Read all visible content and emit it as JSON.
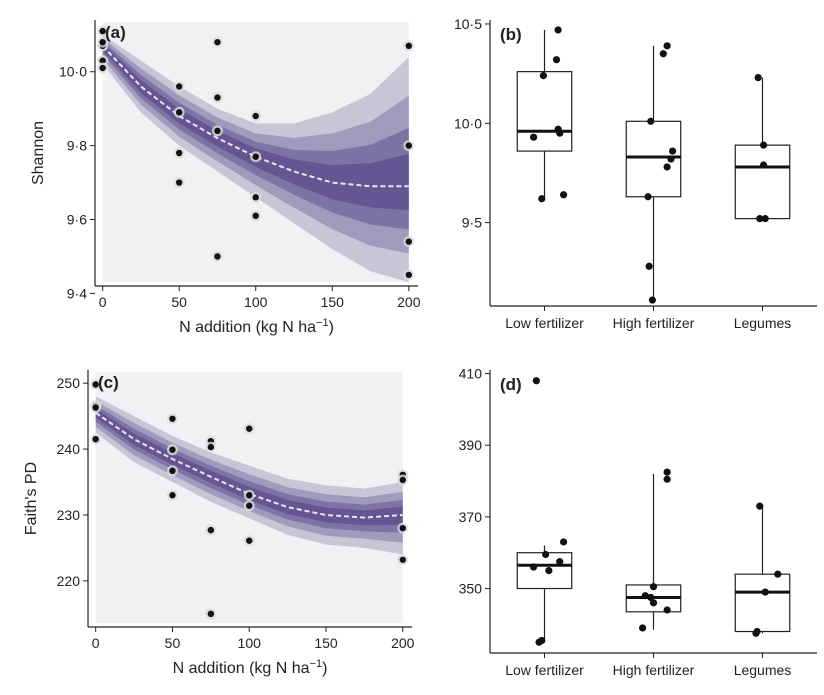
{
  "chart_data": [
    {
      "id": "a",
      "type": "scatter",
      "panel_label": "(a)",
      "ylabel": "Shannon",
      "xlabel": "N addition (kg N ha",
      "xlabel_sup": "−1",
      "xlabel_close": ")",
      "xlim": [
        -5,
        206
      ],
      "ylim": [
        9.42,
        10.14
      ],
      "x_ticks": [
        0,
        50,
        100,
        150,
        200
      ],
      "y_ticks": [
        9.4,
        9.6,
        9.8,
        10.0
      ],
      "y_tick_labels": [
        "9·4",
        "9·6",
        "9·8",
        "10·0"
      ],
      "grid": false,
      "band_color": "#3b2a78",
      "fit_line_color": "#ffffff",
      "fit_line": {
        "x": [
          0,
          25,
          50,
          75,
          100,
          125,
          150,
          175,
          200
        ],
        "y": [
          10.07,
          9.96,
          9.88,
          9.82,
          9.77,
          9.73,
          9.7,
          9.69,
          9.69
        ]
      },
      "band": {
        "upper": [
          10.1,
          10.03,
          9.96,
          9.9,
          9.86,
          9.86,
          9.89,
          9.94,
          10.04
        ],
        "lower": [
          10.02,
          9.89,
          9.8,
          9.73,
          9.66,
          9.59,
          9.52,
          9.46,
          9.43
        ]
      },
      "points": {
        "x": [
          0,
          0,
          0,
          0,
          0,
          50,
          50,
          50,
          50,
          75,
          75,
          75,
          75,
          100,
          100,
          100,
          100,
          200,
          200,
          200,
          200
        ],
        "y": [
          10.11,
          10.07,
          10.03,
          10.01,
          10.08,
          9.96,
          9.89,
          9.78,
          9.7,
          10.08,
          9.93,
          9.84,
          9.5,
          9.88,
          9.77,
          9.66,
          9.61,
          10.07,
          9.8,
          9.54,
          9.45
        ]
      }
    },
    {
      "id": "b",
      "type": "box",
      "panel_label": "(b)",
      "ylabel": "",
      "ylim": [
        9.08,
        10.52
      ],
      "y_ticks": [
        9.5,
        10.0,
        10.5
      ],
      "y_tick_labels": [
        "9·5",
        "10·0",
        "10·5"
      ],
      "categories": [
        "Low fertilizer",
        "High fertilizer",
        "Legumes"
      ],
      "grid": false,
      "boxes": [
        {
          "q1": 9.86,
          "median": 9.96,
          "q3": 10.26,
          "whisker_low": 9.62,
          "whisker_high": 10.47
        },
        {
          "q1": 9.63,
          "median": 9.83,
          "q3": 10.01,
          "whisker_low": 9.11,
          "whisker_high": 10.39
        },
        {
          "q1": 9.52,
          "median": 9.78,
          "q3": 9.89,
          "whisker_low": 9.51,
          "whisker_high": 10.23
        }
      ],
      "points": [
        {
          "cat": 0,
          "jitter": 0.25,
          "y": 10.47
        },
        {
          "cat": 0,
          "jitter": 0.22,
          "y": 10.32
        },
        {
          "cat": 0,
          "jitter": -0.02,
          "y": 10.24
        },
        {
          "cat": 0,
          "jitter": 0.25,
          "y": 9.97
        },
        {
          "cat": 0,
          "jitter": 0.28,
          "y": 9.95
        },
        {
          "cat": 0,
          "jitter": -0.2,
          "y": 9.93
        },
        {
          "cat": 0,
          "jitter": 0.35,
          "y": 9.64
        },
        {
          "cat": 0,
          "jitter": -0.05,
          "y": 9.62
        },
        {
          "cat": 1,
          "jitter": 0.25,
          "y": 10.39
        },
        {
          "cat": 1,
          "jitter": 0.18,
          "y": 10.35
        },
        {
          "cat": 1,
          "jitter": -0.05,
          "y": 10.01
        },
        {
          "cat": 1,
          "jitter": 0.35,
          "y": 9.86
        },
        {
          "cat": 1,
          "jitter": 0.32,
          "y": 9.82
        },
        {
          "cat": 1,
          "jitter": 0.25,
          "y": 9.78
        },
        {
          "cat": 1,
          "jitter": -0.1,
          "y": 9.63
        },
        {
          "cat": 1,
          "jitter": -0.08,
          "y": 9.28
        },
        {
          "cat": 1,
          "jitter": -0.02,
          "y": 9.11
        },
        {
          "cat": 2,
          "jitter": -0.08,
          "y": 10.23
        },
        {
          "cat": 2,
          "jitter": 0.02,
          "y": 9.89
        },
        {
          "cat": 2,
          "jitter": 0.02,
          "y": 9.79
        },
        {
          "cat": 2,
          "jitter": -0.05,
          "y": 9.52
        },
        {
          "cat": 2,
          "jitter": 0.05,
          "y": 9.52
        }
      ]
    },
    {
      "id": "c",
      "type": "scatter",
      "panel_label": "(c)",
      "ylabel": "Faith's PD",
      "xlabel": "N addition (kg N ha",
      "xlabel_sup": "−1",
      "xlabel_close": ")",
      "xlim": [
        -5,
        206
      ],
      "ylim": [
        213,
        252
      ],
      "x_ticks": [
        0,
        50,
        100,
        150,
        200
      ],
      "y_ticks": [
        220,
        230,
        240,
        250
      ],
      "y_tick_labels": [
        "220",
        "230",
        "240",
        "250"
      ],
      "grid": false,
      "band_color": "#3b2a78",
      "fit_line_color": "#ffffff",
      "fit_line": {
        "x": [
          0,
          25,
          50,
          75,
          100,
          125,
          150,
          175,
          200
        ],
        "y": [
          245.5,
          241.5,
          238.5,
          235.8,
          233.2,
          231.2,
          230.0,
          229.6,
          230.0
        ]
      },
      "band": {
        "upper": [
          248,
          245,
          242,
          239.5,
          237.5,
          235.5,
          234.5,
          234,
          235
        ],
        "lower": [
          242.5,
          238,
          235,
          232,
          229.5,
          227,
          225.5,
          225,
          224
        ]
      },
      "points": {
        "x": [
          0,
          0,
          0,
          0,
          50,
          50,
          50,
          50,
          75,
          75,
          75,
          75,
          100,
          100,
          100,
          100,
          200,
          200,
          200,
          200
        ],
        "y": [
          249.8,
          246.6,
          246.3,
          241.5,
          244.6,
          239.9,
          236.7,
          233.0,
          241.2,
          240.3,
          227.7,
          215.0,
          243.1,
          233.0,
          231.4,
          226.1,
          236.1,
          235.3,
          228.0,
          223.2
        ]
      }
    },
    {
      "id": "d",
      "type": "box",
      "panel_label": "(d)",
      "ylabel": "",
      "ylim": [
        332,
        411
      ],
      "y_ticks": [
        350,
        370,
        390,
        410
      ],
      "y_tick_labels": [
        "350",
        "370",
        "390",
        "410"
      ],
      "categories": [
        "Low fertilizer",
        "High fertilizer",
        "Legumes"
      ],
      "grid": false,
      "boxes": [
        {
          "q1": 350,
          "median": 356.5,
          "q3": 360,
          "whisker_low": 335,
          "whisker_high": 362
        },
        {
          "q1": 343.5,
          "median": 347.5,
          "q3": 351,
          "whisker_low": 338.5,
          "whisker_high": 382
        },
        {
          "q1": 338,
          "median": 349,
          "q3": 354,
          "whisker_low": 337.5,
          "whisker_high": 373
        }
      ],
      "points": [
        {
          "cat": 0,
          "jitter": -0.15,
          "y": 408
        },
        {
          "cat": 0,
          "jitter": 0.35,
          "y": 363
        },
        {
          "cat": 0,
          "jitter": 0.02,
          "y": 359.5
        },
        {
          "cat": 0,
          "jitter": 0.28,
          "y": 357.5
        },
        {
          "cat": 0,
          "jitter": -0.2,
          "y": 356
        },
        {
          "cat": 0,
          "jitter": 0.08,
          "y": 355
        },
        {
          "cat": 0,
          "jitter": -0.05,
          "y": 335.5
        },
        {
          "cat": 0,
          "jitter": -0.1,
          "y": 335
        },
        {
          "cat": 1,
          "jitter": 0.25,
          "y": 382.5
        },
        {
          "cat": 1,
          "jitter": 0.25,
          "y": 380.5
        },
        {
          "cat": 1,
          "jitter": 0.0,
          "y": 350.5
        },
        {
          "cat": 1,
          "jitter": -0.15,
          "y": 348
        },
        {
          "cat": 1,
          "jitter": -0.05,
          "y": 347.5
        },
        {
          "cat": 1,
          "jitter": 0.0,
          "y": 346
        },
        {
          "cat": 1,
          "jitter": 0.25,
          "y": 344
        },
        {
          "cat": 1,
          "jitter": -0.2,
          "y": 339
        },
        {
          "cat": 2,
          "jitter": -0.05,
          "y": 373
        },
        {
          "cat": 2,
          "jitter": 0.28,
          "y": 354
        },
        {
          "cat": 2,
          "jitter": 0.05,
          "y": 349
        },
        {
          "cat": 2,
          "jitter": -0.1,
          "y": 338
        },
        {
          "cat": 2,
          "jitter": -0.12,
          "y": 337.5
        }
      ]
    }
  ]
}
